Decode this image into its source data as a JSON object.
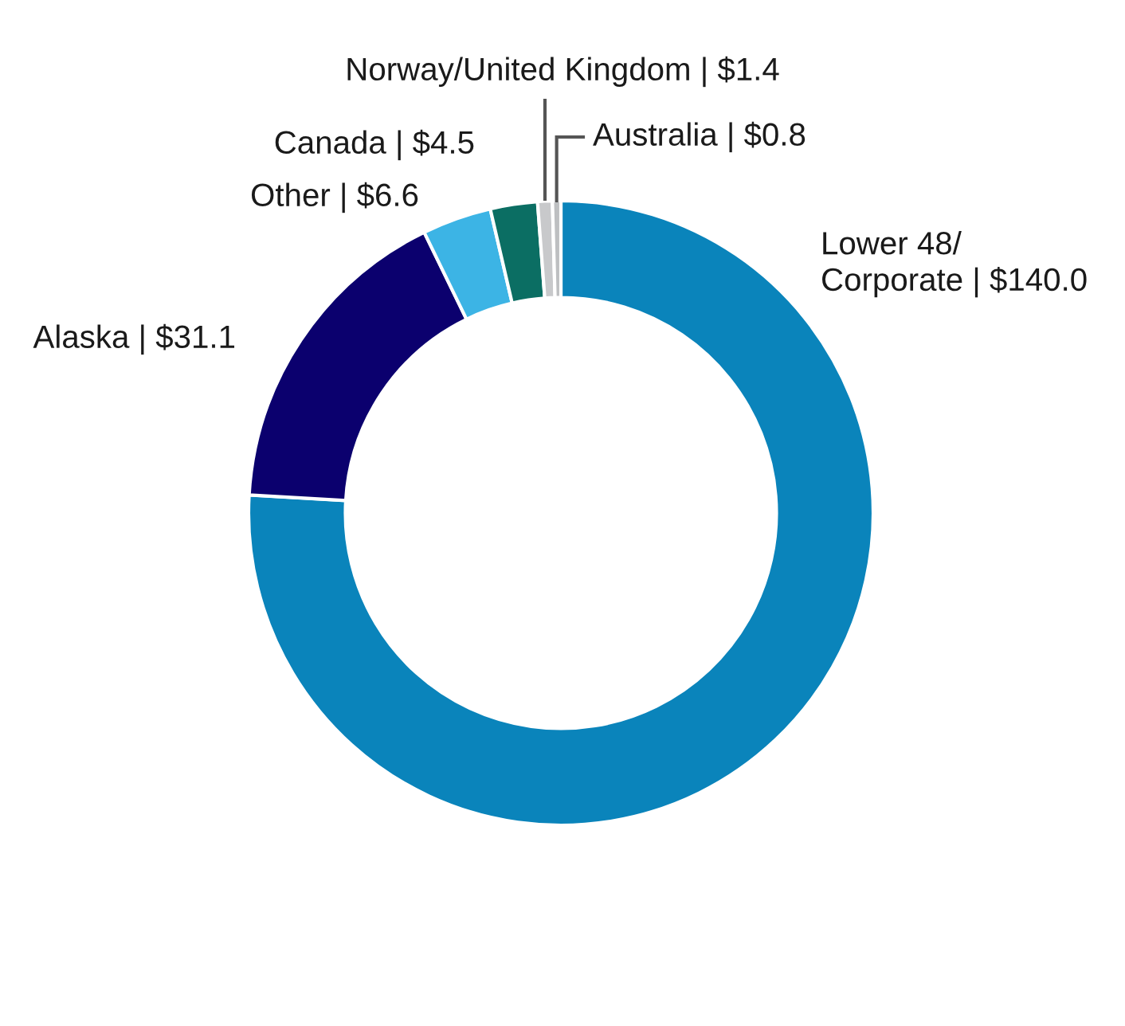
{
  "chart_data": {
    "type": "donut",
    "categories": [
      "Lower 48/\nCorporate | $140.0",
      "Alaska | $31.1",
      "Other | $6.6",
      "Canada | $4.5",
      "Norway/United Kingdom | $1.4",
      "Australia | $0.8"
    ],
    "values": [
      140.0,
      31.1,
      6.6,
      4.5,
      1.4,
      0.8
    ],
    "colors": [
      "#0a84bb",
      "#0b006e",
      "#3cb4e5",
      "#0b6e63",
      "#c8c9cb",
      "#bdbfc1"
    ],
    "legend": false
  }
}
